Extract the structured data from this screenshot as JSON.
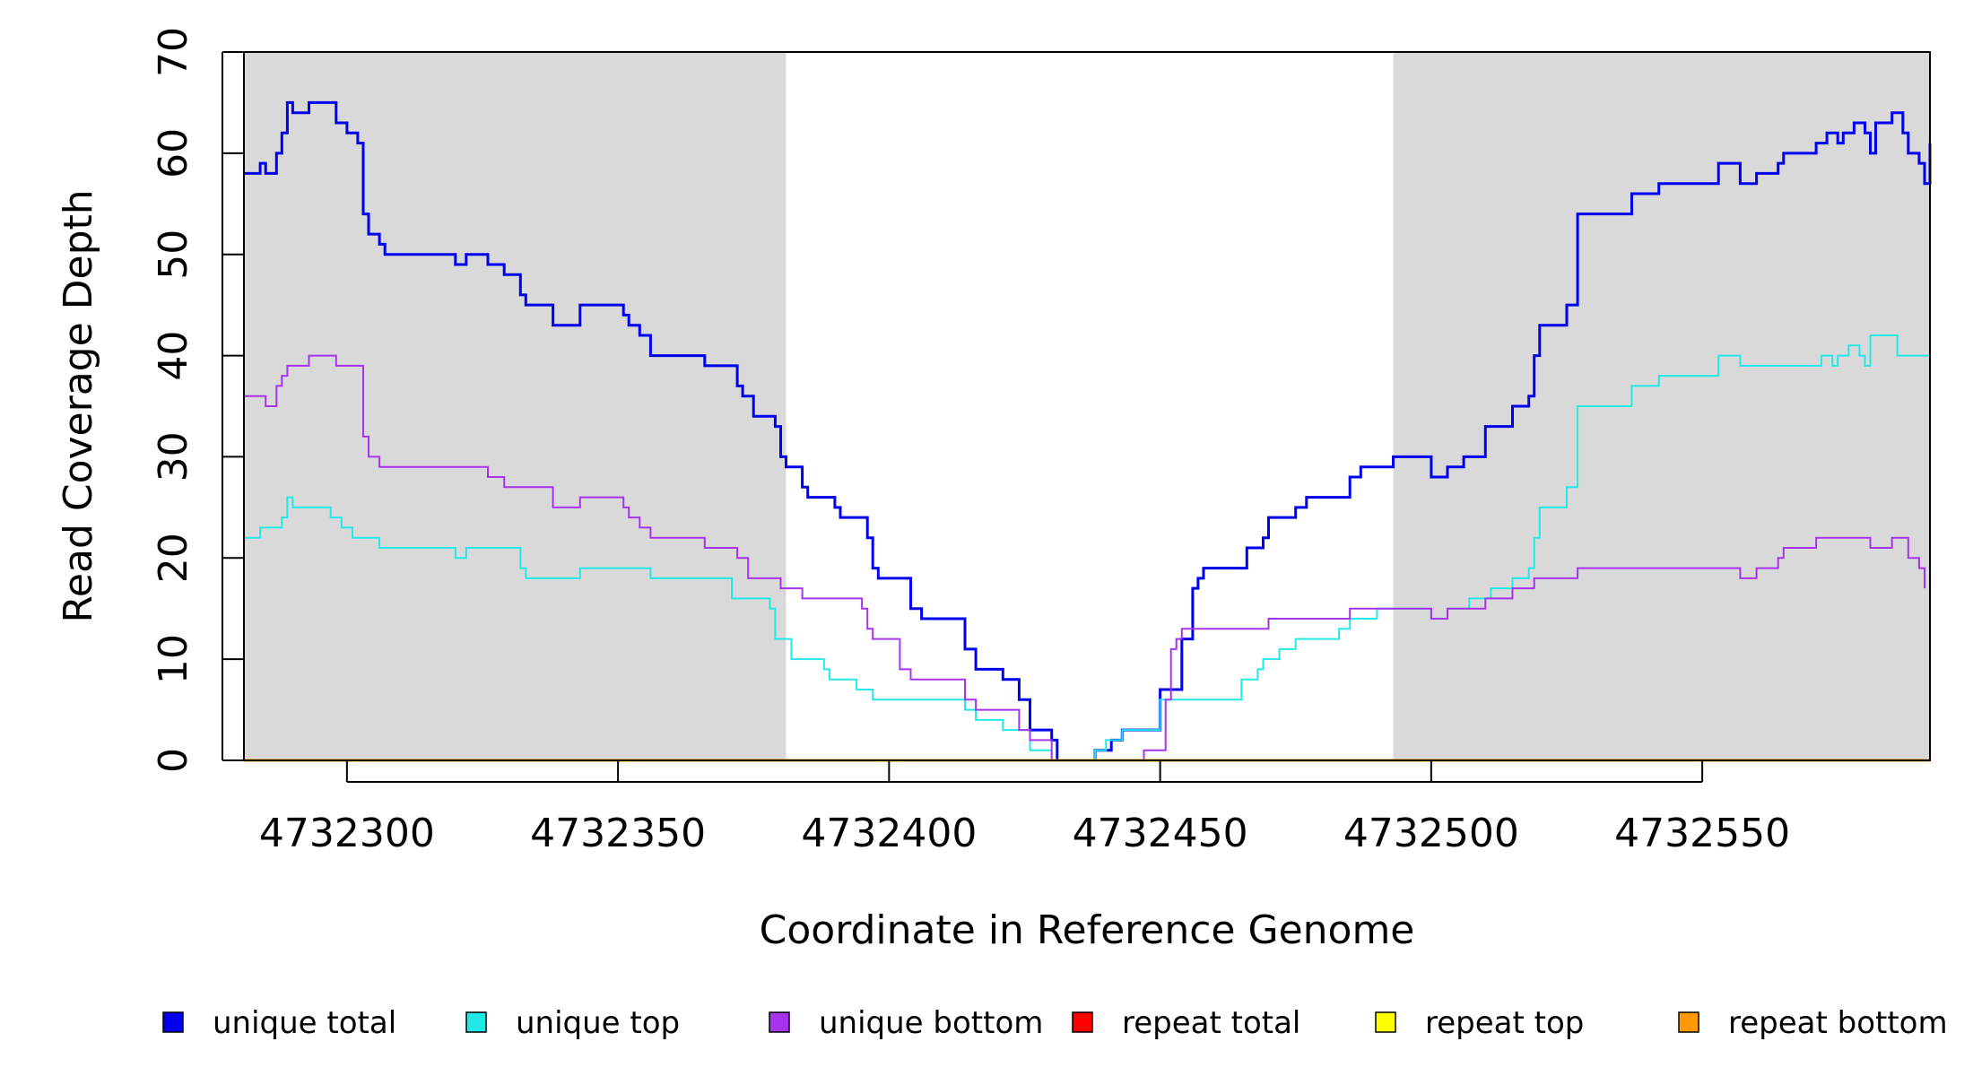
{
  "chart_data": {
    "type": "line",
    "title": "",
    "xlabel": "Coordinate in Reference Genome",
    "ylabel": "Read Coverage Depth",
    "xlim": [
      4732281,
      4732592
    ],
    "ylim": [
      0,
      70
    ],
    "xticks": [
      4732300,
      4732350,
      4732400,
      4732450,
      4732500,
      4732550
    ],
    "xtick_labels": [
      "4732300",
      "4732350",
      "4732400",
      "4732450",
      "4732500",
      "4732550"
    ],
    "yticks": [
      0,
      10,
      20,
      30,
      40,
      50,
      60,
      70
    ],
    "ytick_labels": [
      "0",
      "10",
      "20",
      "30",
      "40",
      "50",
      "60",
      "70"
    ],
    "grid": false,
    "legend_position": "bottom",
    "shaded_regions": [
      {
        "x0": 4732281,
        "x1": 4732381,
        "color": "#d9d9d9"
      },
      {
        "x0": 4732493,
        "x1": 4732592,
        "color": "#d9d9d9"
      }
    ],
    "step_series": [
      {
        "name": "unique total",
        "color": "#0000ee",
        "width": 3,
        "points": [
          [
            4732281,
            58
          ],
          [
            4732284,
            59
          ],
          [
            4732285,
            58
          ],
          [
            4732287,
            60
          ],
          [
            4732288,
            62
          ],
          [
            4732289,
            65
          ],
          [
            4732290,
            64
          ],
          [
            4732293,
            65
          ],
          [
            4732298,
            63
          ],
          [
            4732300,
            62
          ],
          [
            4732302,
            61
          ],
          [
            4732303,
            54
          ],
          [
            4732304,
            52
          ],
          [
            4732306,
            51
          ],
          [
            4732307,
            50
          ],
          [
            4732320,
            49
          ],
          [
            4732322,
            50
          ],
          [
            4732326,
            49
          ],
          [
            4732329,
            48
          ],
          [
            4732332,
            46
          ],
          [
            4732333,
            45
          ],
          [
            4732338,
            43
          ],
          [
            4732343,
            45
          ],
          [
            4732351,
            44
          ],
          [
            4732352,
            43
          ],
          [
            4732354,
            42
          ],
          [
            4732356,
            40
          ],
          [
            4732366,
            39
          ],
          [
            4732372,
            37
          ],
          [
            4732373,
            36
          ],
          [
            4732375,
            34
          ],
          [
            4732379,
            33
          ],
          [
            4732380,
            30
          ],
          [
            4732381,
            29
          ],
          [
            4732384,
            27
          ],
          [
            4732385,
            26
          ],
          [
            4732390,
            25
          ],
          [
            4732391,
            24
          ],
          [
            4732396,
            22
          ],
          [
            4732397,
            19
          ],
          [
            4732398,
            18
          ],
          [
            4732404,
            15
          ],
          [
            4732406,
            14
          ],
          [
            4732414,
            11
          ],
          [
            4732416,
            9
          ],
          [
            4732421,
            8
          ],
          [
            4732424,
            6
          ],
          [
            4732426,
            3
          ],
          [
            4732430,
            2
          ],
          [
            4732431,
            0
          ],
          [
            4732438,
            1
          ],
          [
            4732441,
            2
          ],
          [
            4732443,
            3
          ],
          [
            4732450,
            7
          ],
          [
            4732454,
            12
          ],
          [
            4732456,
            17
          ],
          [
            4732457,
            18
          ],
          [
            4732458,
            19
          ],
          [
            4732466,
            21
          ],
          [
            4732469,
            22
          ],
          [
            4732470,
            24
          ],
          [
            4732475,
            25
          ],
          [
            4732477,
            26
          ],
          [
            4732485,
            28
          ],
          [
            4732487,
            29
          ],
          [
            4732493,
            30
          ],
          [
            4732500,
            28
          ],
          [
            4732503,
            29
          ],
          [
            4732506,
            30
          ],
          [
            4732510,
            33
          ],
          [
            4732515,
            35
          ],
          [
            4732518,
            36
          ],
          [
            4732519,
            40
          ],
          [
            4732520,
            43
          ],
          [
            4732525,
            45
          ],
          [
            4732527,
            54
          ],
          [
            4732537,
            56
          ],
          [
            4732542,
            57
          ],
          [
            4732553,
            59
          ],
          [
            4732557,
            57
          ],
          [
            4732560,
            58
          ],
          [
            4732564,
            59
          ],
          [
            4732565,
            60
          ],
          [
            4732571,
            61
          ],
          [
            4732573,
            62
          ],
          [
            4732575,
            61
          ],
          [
            4732576,
            62
          ],
          [
            4732578,
            63
          ],
          [
            4732580,
            62
          ],
          [
            4732581,
            60
          ],
          [
            4732582,
            63
          ],
          [
            4732585,
            64
          ],
          [
            4732587,
            62
          ],
          [
            4732588,
            60
          ],
          [
            4732590,
            59
          ],
          [
            4732591,
            57
          ],
          [
            4732592,
            61
          ]
        ]
      },
      {
        "name": "unique top",
        "color": "#22e8e8",
        "width": 2,
        "points": [
          [
            4732281,
            22
          ],
          [
            4732284,
            23
          ],
          [
            4732288,
            24
          ],
          [
            4732289,
            26
          ],
          [
            4732290,
            25
          ],
          [
            4732297,
            24
          ],
          [
            4732299,
            23
          ],
          [
            4732301,
            22
          ],
          [
            4732306,
            21
          ],
          [
            4732320,
            20
          ],
          [
            4732322,
            21
          ],
          [
            4732332,
            19
          ],
          [
            4732333,
            18
          ],
          [
            4732343,
            19
          ],
          [
            4732356,
            18
          ],
          [
            4732371,
            16
          ],
          [
            4732378,
            15
          ],
          [
            4732379,
            12
          ],
          [
            4732382,
            10
          ],
          [
            4732388,
            9
          ],
          [
            4732389,
            8
          ],
          [
            4732394,
            7
          ],
          [
            4732397,
            6
          ],
          [
            4732414,
            5
          ],
          [
            4732416,
            4
          ],
          [
            4732421,
            3
          ],
          [
            4732424,
            3
          ],
          [
            4732426,
            1
          ],
          [
            4732430,
            0
          ],
          [
            4732438,
            1
          ],
          [
            4732440,
            2
          ],
          [
            4732443,
            3
          ],
          [
            4732450,
            6
          ],
          [
            4732465,
            8
          ],
          [
            4732468,
            9
          ],
          [
            4732469,
            10
          ],
          [
            4732472,
            11
          ],
          [
            4732475,
            12
          ],
          [
            4732483,
            13
          ],
          [
            4732485,
            14
          ],
          [
            4732490,
            15
          ],
          [
            4732500,
            14
          ],
          [
            4732503,
            15
          ],
          [
            4732507,
            16
          ],
          [
            4732511,
            17
          ],
          [
            4732515,
            18
          ],
          [
            4732518,
            19
          ],
          [
            4732519,
            22
          ],
          [
            4732520,
            25
          ],
          [
            4732525,
            27
          ],
          [
            4732527,
            35
          ],
          [
            4732537,
            37
          ],
          [
            4732542,
            38
          ],
          [
            4732553,
            40
          ],
          [
            4732557,
            39
          ],
          [
            4732572,
            40
          ],
          [
            4732574,
            39
          ],
          [
            4732575,
            40
          ],
          [
            4732577,
            41
          ],
          [
            4732579,
            40
          ],
          [
            4732580,
            39
          ],
          [
            4732581,
            42
          ],
          [
            4732586,
            40
          ],
          [
            4732592,
            43
          ]
        ]
      },
      {
        "name": "unique bottom",
        "color": "#a633ee",
        "width": 2,
        "points": [
          [
            4732281,
            36
          ],
          [
            4732285,
            35
          ],
          [
            4732287,
            37
          ],
          [
            4732288,
            38
          ],
          [
            4732289,
            39
          ],
          [
            4732293,
            40
          ],
          [
            4732298,
            39
          ],
          [
            4732303,
            32
          ],
          [
            4732304,
            30
          ],
          [
            4732306,
            29
          ],
          [
            4732326,
            28
          ],
          [
            4732329,
            27
          ],
          [
            4732338,
            25
          ],
          [
            4732343,
            26
          ],
          [
            4732351,
            25
          ],
          [
            4732352,
            24
          ],
          [
            4732354,
            23
          ],
          [
            4732356,
            22
          ],
          [
            4732366,
            21
          ],
          [
            4732372,
            20
          ],
          [
            4732374,
            18
          ],
          [
            4732380,
            17
          ],
          [
            4732384,
            16
          ],
          [
            4732395,
            15
          ],
          [
            4732396,
            13
          ],
          [
            4732397,
            12
          ],
          [
            4732402,
            9
          ],
          [
            4732404,
            8
          ],
          [
            4732414,
            6
          ],
          [
            4732416,
            5
          ],
          [
            4732424,
            3
          ],
          [
            4732426,
            2
          ],
          [
            4732430,
            0
          ],
          [
            4732447,
            1
          ],
          [
            4732451,
            6
          ],
          [
            4732452,
            11
          ],
          [
            4732453,
            12
          ],
          [
            4732454,
            13
          ],
          [
            4732466,
            13
          ],
          [
            4732470,
            14
          ],
          [
            4732485,
            15
          ],
          [
            4732500,
            14
          ],
          [
            4732503,
            15
          ],
          [
            4732510,
            16
          ],
          [
            4732515,
            17
          ],
          [
            4732519,
            18
          ],
          [
            4732527,
            19
          ],
          [
            4732557,
            18
          ],
          [
            4732560,
            19
          ],
          [
            4732564,
            20
          ],
          [
            4732565,
            21
          ],
          [
            4732571,
            22
          ],
          [
            4732581,
            21
          ],
          [
            4732585,
            22
          ],
          [
            4732588,
            20
          ],
          [
            4732590,
            19
          ],
          [
            4732591,
            17
          ]
        ]
      },
      {
        "name": "repeat total",
        "color": "#ff0000",
        "width": 2,
        "points": [
          [
            4732281,
            0
          ],
          [
            4732592,
            0
          ]
        ]
      },
      {
        "name": "repeat top",
        "color": "#ffff00",
        "width": 2,
        "points": [
          [
            4732281,
            0
          ],
          [
            4732592,
            0
          ]
        ]
      },
      {
        "name": "repeat bottom",
        "color": "#ff9900",
        "width": 3,
        "points": [
          [
            4732281,
            0
          ],
          [
            4732592,
            0
          ]
        ]
      }
    ],
    "legend": [
      {
        "label": "unique total",
        "color": "#0000ee"
      },
      {
        "label": "unique top",
        "color": "#22e8e8"
      },
      {
        "label": "unique bottom",
        "color": "#a633ee"
      },
      {
        "label": "repeat total",
        "color": "#ff0000"
      },
      {
        "label": "repeat top",
        "color": "#ffff00"
      },
      {
        "label": "repeat bottom",
        "color": "#ff9900"
      }
    ]
  }
}
